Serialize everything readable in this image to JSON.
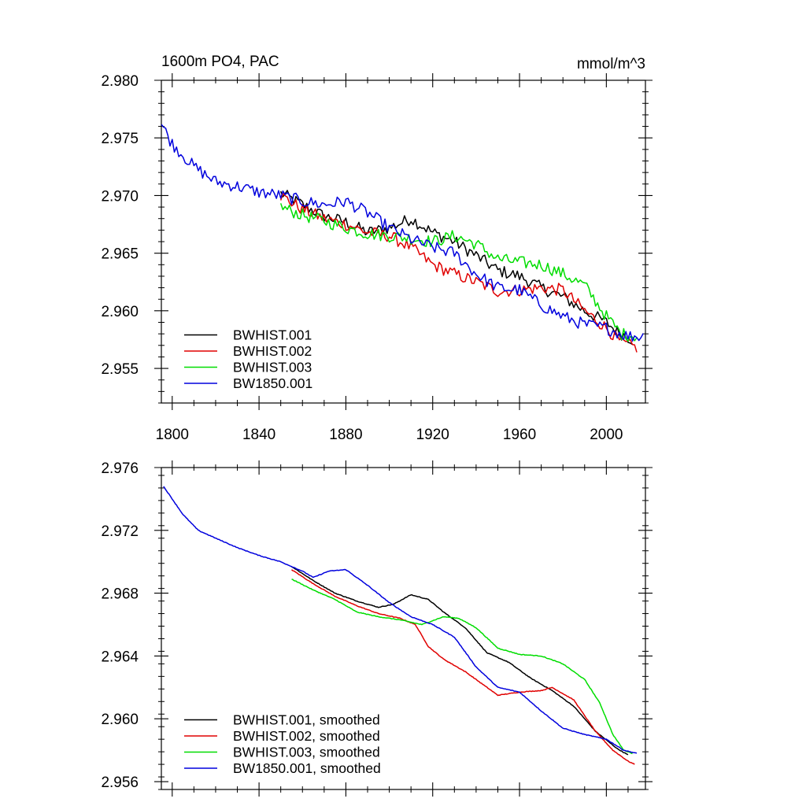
{
  "header": {
    "left": "1600m PO4, PAC",
    "right": "mmol/m^3"
  },
  "colors": {
    "black": "#000000",
    "red": "#e00000",
    "green": "#00dd00",
    "blue": "#0000dd"
  },
  "chart_data": [
    {
      "type": "line",
      "xlim": [
        1795,
        2018
      ],
      "ylim": [
        2.952,
        2.98
      ],
      "x_ticks": [
        1800,
        1840,
        1880,
        1920,
        1960,
        2000
      ],
      "x_tick_labels": [
        "1800",
        "1840",
        "1880",
        "1920",
        "1960",
        "2000"
      ],
      "y_ticks": [
        2.955,
        2.96,
        2.965,
        2.97,
        2.975,
        2.98
      ],
      "y_tick_labels": [
        "2.955",
        "2.960",
        "2.965",
        "2.970",
        "2.975",
        "2.980"
      ],
      "legend_position": "bottom-left",
      "noisy": true,
      "series": [
        {
          "name": "BWHIST.001",
          "color": "#000000",
          "points": [
            [
              1850,
              2.9702
            ],
            [
              1860,
              2.9692
            ],
            [
              1870,
              2.9682
            ],
            [
              1880,
              2.9677
            ],
            [
              1890,
              2.9668
            ],
            [
              1900,
              2.9672
            ],
            [
              1910,
              2.968
            ],
            [
              1920,
              2.9668
            ],
            [
              1930,
              2.966
            ],
            [
              1940,
              2.9648
            ],
            [
              1950,
              2.9635
            ],
            [
              1960,
              2.963
            ],
            [
              1970,
              2.962
            ],
            [
              1980,
              2.9612
            ],
            [
              1990,
              2.96
            ],
            [
              2000,
              2.959
            ],
            [
              2005,
              2.9582
            ],
            [
              2012,
              2.9575
            ]
          ]
        },
        {
          "name": "BWHIST.002",
          "color": "#e00000",
          "points": [
            [
              1850,
              2.97
            ],
            [
              1860,
              2.9688
            ],
            [
              1870,
              2.968
            ],
            [
              1880,
              2.9675
            ],
            [
              1890,
              2.9668
            ],
            [
              1900,
              2.9665
            ],
            [
              1910,
              2.9655
            ],
            [
              1920,
              2.964
            ],
            [
              1930,
              2.9632
            ],
            [
              1940,
              2.9625
            ],
            [
              1950,
              2.9617
            ],
            [
              1960,
              2.9618
            ],
            [
              1970,
              2.962
            ],
            [
              1980,
              2.9618
            ],
            [
              1990,
              2.96
            ],
            [
              2000,
              2.9585
            ],
            [
              2007,
              2.9572
            ],
            [
              2014,
              2.9568
            ]
          ]
        },
        {
          "name": "BWHIST.003",
          "color": "#00dd00",
          "points": [
            [
              1850,
              2.969
            ],
            [
              1860,
              2.9683
            ],
            [
              1870,
              2.9678
            ],
            [
              1880,
              2.9672
            ],
            [
              1890,
              2.9667
            ],
            [
              1900,
              2.9665
            ],
            [
              1910,
              2.9663
            ],
            [
              1920,
              2.966
            ],
            [
              1930,
              2.9665
            ],
            [
              1940,
              2.9658
            ],
            [
              1950,
              2.9645
            ],
            [
              1960,
              2.9642
            ],
            [
              1970,
              2.964
            ],
            [
              1980,
              2.9632
            ],
            [
              1990,
              2.9622
            ],
            [
              2000,
              2.9595
            ],
            [
              2007,
              2.958
            ],
            [
              2014,
              2.9578
            ]
          ]
        },
        {
          "name": "BW1850.001",
          "color": "#0000dd",
          "points": [
            [
              1795,
              2.9762
            ],
            [
              1800,
              2.9745
            ],
            [
              1810,
              2.9725
            ],
            [
              1820,
              2.9712
            ],
            [
              1830,
              2.9708
            ],
            [
              1840,
              2.9703
            ],
            [
              1850,
              2.97
            ],
            [
              1860,
              2.9695
            ],
            [
              1870,
              2.9692
            ],
            [
              1880,
              2.9695
            ],
            [
              1890,
              2.9685
            ],
            [
              1900,
              2.9672
            ],
            [
              1910,
              2.9662
            ],
            [
              1920,
              2.9655
            ],
            [
              1930,
              2.965
            ],
            [
              1940,
              2.9632
            ],
            [
              1950,
              2.962
            ],
            [
              1960,
              2.9618
            ],
            [
              1970,
              2.9605
            ],
            [
              1980,
              2.9595
            ],
            [
              1990,
              2.9588
            ],
            [
              2000,
              2.9585
            ],
            [
              2010,
              2.9578
            ],
            [
              2017,
              2.9578
            ]
          ]
        }
      ]
    },
    {
      "type": "line",
      "xlim": [
        1795,
        2018
      ],
      "ylim": [
        2.9555,
        2.976
      ],
      "x_ticks": [
        1800,
        1840,
        1880,
        1920,
        1960,
        2000
      ],
      "y_ticks": [
        2.956,
        2.96,
        2.964,
        2.968,
        2.972,
        2.976
      ],
      "y_tick_labels": [
        "2.956",
        "2.960",
        "2.964",
        "2.968",
        "2.972",
        "2.976"
      ],
      "legend_position": "bottom-left",
      "noisy": false,
      "series": [
        {
          "name": "BWHIST.001, smoothed",
          "color": "#000000",
          "points": [
            [
              1855,
              2.9697
            ],
            [
              1865,
              2.9688
            ],
            [
              1875,
              2.968
            ],
            [
              1885,
              2.9675
            ],
            [
              1895,
              2.9671
            ],
            [
              1902,
              2.9673
            ],
            [
              1910,
              2.9679
            ],
            [
              1918,
              2.9676
            ],
            [
              1925,
              2.9668
            ],
            [
              1935,
              2.9658
            ],
            [
              1945,
              2.9642
            ],
            [
              1955,
              2.9636
            ],
            [
              1965,
              2.9626
            ],
            [
              1975,
              2.9618
            ],
            [
              1985,
              2.9608
            ],
            [
              1995,
              2.9592
            ],
            [
              2005,
              2.9581
            ],
            [
              2010,
              2.9577
            ]
          ]
        },
        {
          "name": "BWHIST.002, smoothed",
          "color": "#e00000",
          "points": [
            [
              1855,
              2.9695
            ],
            [
              1865,
              2.9686
            ],
            [
              1875,
              2.9678
            ],
            [
              1885,
              2.9672
            ],
            [
              1895,
              2.9667
            ],
            [
              1905,
              2.9664
            ],
            [
              1912,
              2.966
            ],
            [
              1918,
              2.9646
            ],
            [
              1925,
              2.9638
            ],
            [
              1935,
              2.963
            ],
            [
              1945,
              2.962
            ],
            [
              1950,
              2.9615
            ],
            [
              1960,
              2.9617
            ],
            [
              1970,
              2.9618
            ],
            [
              1975,
              2.962
            ],
            [
              1985,
              2.9612
            ],
            [
              1995,
              2.9592
            ],
            [
              2003,
              2.958
            ],
            [
              2010,
              2.9573
            ],
            [
              2013,
              2.9571
            ]
          ]
        },
        {
          "name": "BWHIST.003, smoothed",
          "color": "#00dd00",
          "points": [
            [
              1855,
              2.9689
            ],
            [
              1865,
              2.9682
            ],
            [
              1875,
              2.9676
            ],
            [
              1885,
              2.9668
            ],
            [
              1895,
              2.9665
            ],
            [
              1905,
              2.9663
            ],
            [
              1915,
              2.966
            ],
            [
              1925,
              2.9665
            ],
            [
              1932,
              2.9664
            ],
            [
              1940,
              2.9658
            ],
            [
              1950,
              2.9645
            ],
            [
              1960,
              2.9641
            ],
            [
              1970,
              2.964
            ],
            [
              1980,
              2.9635
            ],
            [
              1990,
              2.9625
            ],
            [
              1997,
              2.961
            ],
            [
              2003,
              2.959
            ],
            [
              2008,
              2.958
            ],
            [
              2012,
              2.9578
            ]
          ]
        },
        {
          "name": "BW1850.001, smoothed",
          "color": "#0000dd",
          "points": [
            [
              1796,
              2.9748
            ],
            [
              1805,
              2.973
            ],
            [
              1812,
              2.972
            ],
            [
              1820,
              2.9715
            ],
            [
              1830,
              2.9709
            ],
            [
              1840,
              2.9704
            ],
            [
              1850,
              2.97
            ],
            [
              1860,
              2.9694
            ],
            [
              1865,
              2.969
            ],
            [
              1872,
              2.9694
            ],
            [
              1880,
              2.9695
            ],
            [
              1890,
              2.9685
            ],
            [
              1900,
              2.9674
            ],
            [
              1910,
              2.9665
            ],
            [
              1920,
              2.966
            ],
            [
              1930,
              2.9652
            ],
            [
              1940,
              2.9633
            ],
            [
              1950,
              2.962
            ],
            [
              1960,
              2.9617
            ],
            [
              1970,
              2.9605
            ],
            [
              1980,
              2.9594
            ],
            [
              1990,
              2.959
            ],
            [
              2000,
              2.9587
            ],
            [
              2008,
              2.958
            ],
            [
              2014,
              2.9578
            ]
          ]
        }
      ]
    }
  ]
}
